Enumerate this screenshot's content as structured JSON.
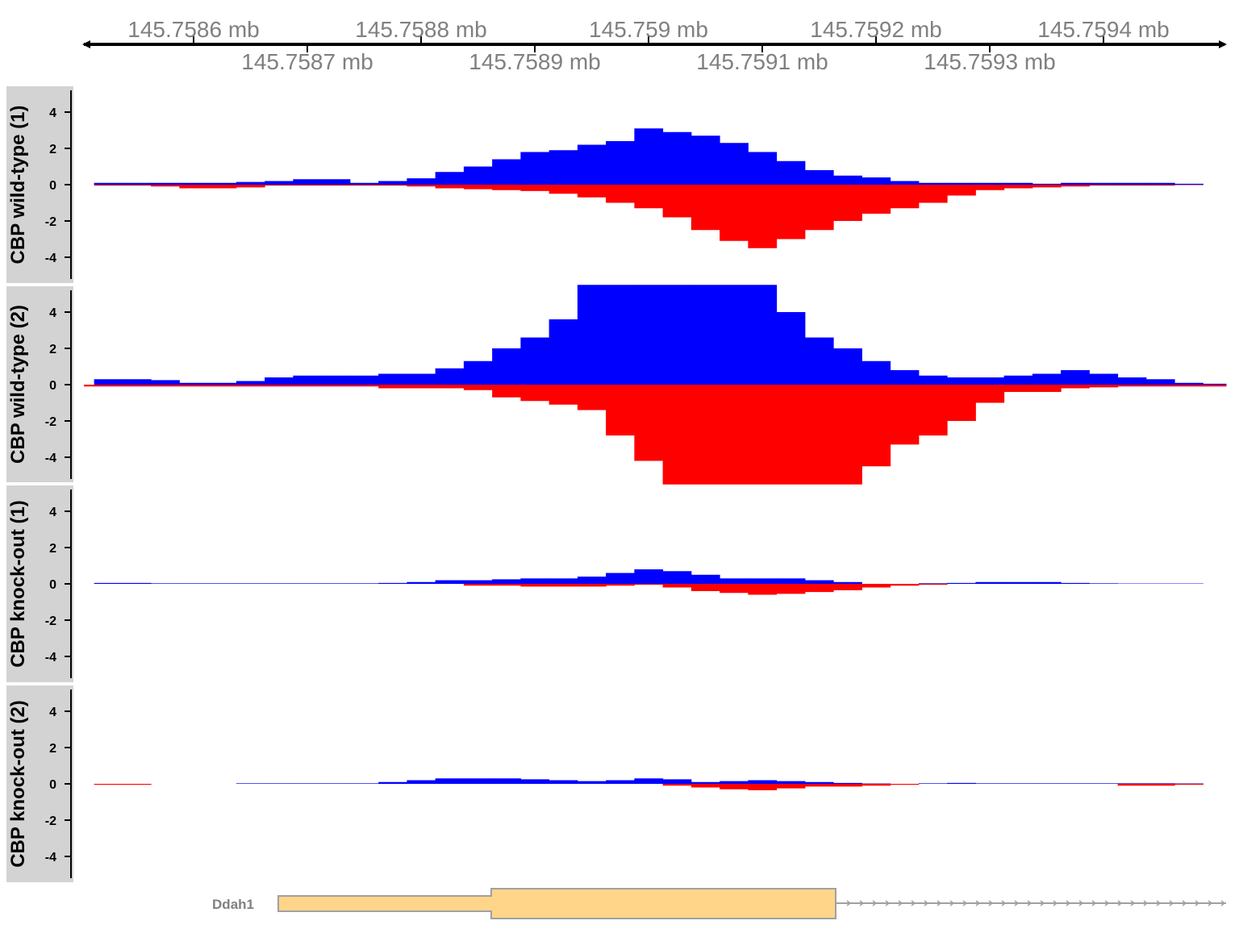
{
  "chart_data": {
    "type": "area",
    "genome_axis": {
      "unit": "mb",
      "range": [
        145.7585,
        145.7595
      ],
      "ticks": [
        "145.7586 mb",
        "145.7587 mb",
        "145.7588 mb",
        "145.7589 mb",
        "145.759 mb",
        "145.7591 mb",
        "145.7592 mb",
        "145.7593 mb",
        "145.7594 mb"
      ],
      "tick_values": [
        145.7586,
        145.7587,
        145.7588,
        145.7589,
        145.759,
        145.7591,
        145.7592,
        145.7593,
        145.7594
      ]
    },
    "x": [
      145.7585,
      145.758525,
      145.75855,
      145.758575,
      145.7586,
      145.758625,
      145.75865,
      145.758675,
      145.7587,
      145.758725,
      145.75875,
      145.758775,
      145.7588,
      145.758825,
      145.75885,
      145.758875,
      145.7589,
      145.758925,
      145.75895,
      145.758975,
      145.759,
      145.759025,
      145.75905,
      145.759075,
      145.7591,
      145.759125,
      145.75915,
      145.759175,
      145.7592,
      145.759225,
      145.75925,
      145.759275,
      145.7593,
      145.759325,
      145.75935,
      145.759375,
      145.7594,
      145.759425,
      145.75945,
      145.759475,
      145.7595
    ],
    "ylim": [
      -5.5,
      5.5
    ],
    "yticks": [
      "-4",
      "-2",
      "0",
      "2",
      "4"
    ],
    "ytick_values": [
      -4,
      -2,
      0,
      2,
      4
    ],
    "colors": {
      "positive": "#0000ff",
      "negative": "#ff0000",
      "panel": "#d3d3d3",
      "gene_fill": "#ffd58a",
      "gene_stroke": "#a0a0a0"
    },
    "tracks": [
      {
        "name": "CBP wild-type (1)",
        "positive": [
          0,
          0.1,
          0.1,
          0.1,
          0.1,
          0.1,
          0.15,
          0.2,
          0.3,
          0.3,
          0.1,
          0.2,
          0.35,
          0.7,
          1.0,
          1.4,
          1.8,
          1.9,
          2.2,
          2.4,
          3.1,
          2.9,
          2.7,
          2.3,
          1.8,
          1.3,
          0.8,
          0.5,
          0.4,
          0.2,
          0.1,
          0.1,
          0.1,
          0.1,
          0.05,
          0.1,
          0.1,
          0.1,
          0.1,
          0.05,
          0
        ],
        "negative": [
          0,
          -0.05,
          -0.05,
          -0.1,
          -0.2,
          -0.2,
          -0.15,
          -0.05,
          -0.05,
          -0.05,
          -0.05,
          -0.05,
          -0.1,
          -0.2,
          -0.25,
          -0.3,
          -0.35,
          -0.5,
          -0.7,
          -1.0,
          -1.3,
          -1.8,
          -2.5,
          -3.1,
          -3.5,
          -3.0,
          -2.5,
          -2.0,
          -1.6,
          -1.3,
          -1.0,
          -0.6,
          -0.3,
          -0.2,
          -0.15,
          -0.1,
          -0.05,
          -0.05,
          -0.05,
          -0.02,
          0
        ]
      },
      {
        "name": "CBP wild-type (2)",
        "positive": [
          0,
          0.3,
          0.3,
          0.25,
          0.1,
          0.1,
          0.2,
          0.4,
          0.5,
          0.5,
          0.5,
          0.6,
          0.6,
          0.9,
          1.3,
          2.0,
          2.6,
          3.6,
          5.5,
          5.5,
          5.5,
          5.5,
          5.5,
          5.5,
          5.5,
          4.0,
          2.6,
          2.0,
          1.3,
          0.8,
          0.5,
          0.4,
          0.4,
          0.5,
          0.6,
          0.8,
          0.6,
          0.4,
          0.3,
          0.1,
          0.05
        ],
        "negative": [
          -0.1,
          -0.1,
          -0.1,
          -0.1,
          -0.1,
          -0.1,
          -0.1,
          -0.1,
          -0.1,
          -0.1,
          -0.1,
          -0.2,
          -0.2,
          -0.2,
          -0.3,
          -0.7,
          -0.9,
          -1.1,
          -1.4,
          -2.8,
          -4.2,
          -5.5,
          -5.5,
          -5.5,
          -5.5,
          -5.5,
          -5.5,
          -5.5,
          -4.5,
          -3.3,
          -2.8,
          -2.0,
          -1.0,
          -0.4,
          -0.4,
          -0.2,
          -0.15,
          -0.1,
          -0.1,
          -0.1,
          -0.1
        ]
      },
      {
        "name": "CBP knock-out (1)",
        "positive": [
          0,
          0.05,
          0.05,
          0.03,
          0.03,
          0.03,
          0.03,
          0.03,
          0.03,
          0.03,
          0.03,
          0.05,
          0.1,
          0.2,
          0.2,
          0.25,
          0.3,
          0.3,
          0.4,
          0.6,
          0.8,
          0.7,
          0.5,
          0.3,
          0.3,
          0.3,
          0.2,
          0.1,
          0,
          0,
          0.03,
          0.05,
          0.1,
          0.1,
          0.1,
          0.05,
          0.03,
          0.02,
          0.02,
          0.02,
          0
        ],
        "negative": [
          0,
          0,
          0,
          0,
          0,
          0,
          0,
          0,
          0,
          0,
          0,
          0,
          0,
          0,
          -0.1,
          -0.1,
          -0.15,
          -0.15,
          -0.15,
          -0.1,
          -0.05,
          -0.2,
          -0.4,
          -0.5,
          -0.6,
          -0.55,
          -0.45,
          -0.35,
          -0.2,
          -0.1,
          -0.05,
          0,
          0,
          0,
          0,
          0,
          0,
          0,
          0,
          0,
          0
        ]
      },
      {
        "name": "CBP knock-out (2)",
        "positive": [
          0,
          0,
          0,
          0,
          0,
          0,
          0.03,
          0.03,
          0.03,
          0.03,
          0.03,
          0.1,
          0.2,
          0.3,
          0.3,
          0.3,
          0.25,
          0.2,
          0.15,
          0.2,
          0.3,
          0.25,
          0.1,
          0.15,
          0.2,
          0.15,
          0.1,
          0.05,
          0.02,
          0,
          0.03,
          0.05,
          0.03,
          0.03,
          0.03,
          0.03,
          0.03,
          0.03,
          0.03,
          0.02,
          0
        ],
        "negative": [
          0,
          -0.05,
          -0.05,
          0,
          0,
          0,
          0,
          0,
          0,
          0,
          0,
          0,
          0,
          0,
          0,
          0,
          0,
          0,
          0,
          0,
          0,
          -0.1,
          -0.2,
          -0.3,
          -0.35,
          -0.25,
          -0.15,
          -0.15,
          -0.1,
          -0.05,
          0,
          0,
          0,
          0,
          0,
          0,
          0,
          -0.1,
          -0.1,
          -0.05,
          0
        ]
      }
    ],
    "gene": {
      "name": "Ddah1"
    }
  }
}
